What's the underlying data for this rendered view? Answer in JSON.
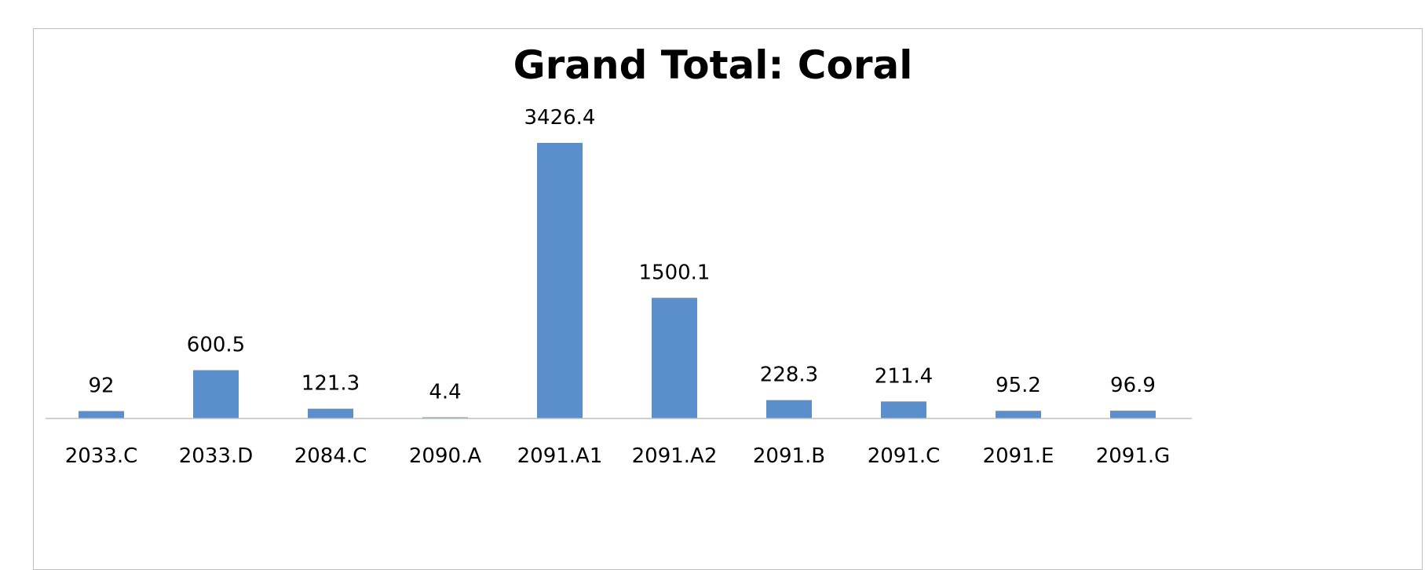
{
  "chart_data": {
    "type": "bar",
    "title": "Grand Total: Coral",
    "xlabel": "",
    "ylabel": "",
    "categories": [
      "2033.C",
      "2033.D",
      "2084.C",
      "2090.A",
      "2091.A1",
      "2091.A2",
      "2091.B",
      "2091.C",
      "2091.E",
      "2091.G"
    ],
    "values": [
      92,
      600.5,
      121.3,
      4.4,
      3426.4,
      1500.1,
      228.3,
      211.4,
      95.2,
      96.9
    ],
    "data_labels": [
      "92",
      "600.5",
      "121.3",
      "4.4",
      "3426.4",
      "1500.1",
      "228.3",
      "211.4",
      "95.2",
      "96.9"
    ],
    "ylim": [
      0,
      3426.4
    ],
    "grid": false,
    "legend": "none",
    "bar_color": "#5b8fcb",
    "axis_color": "#bfbfbf"
  }
}
